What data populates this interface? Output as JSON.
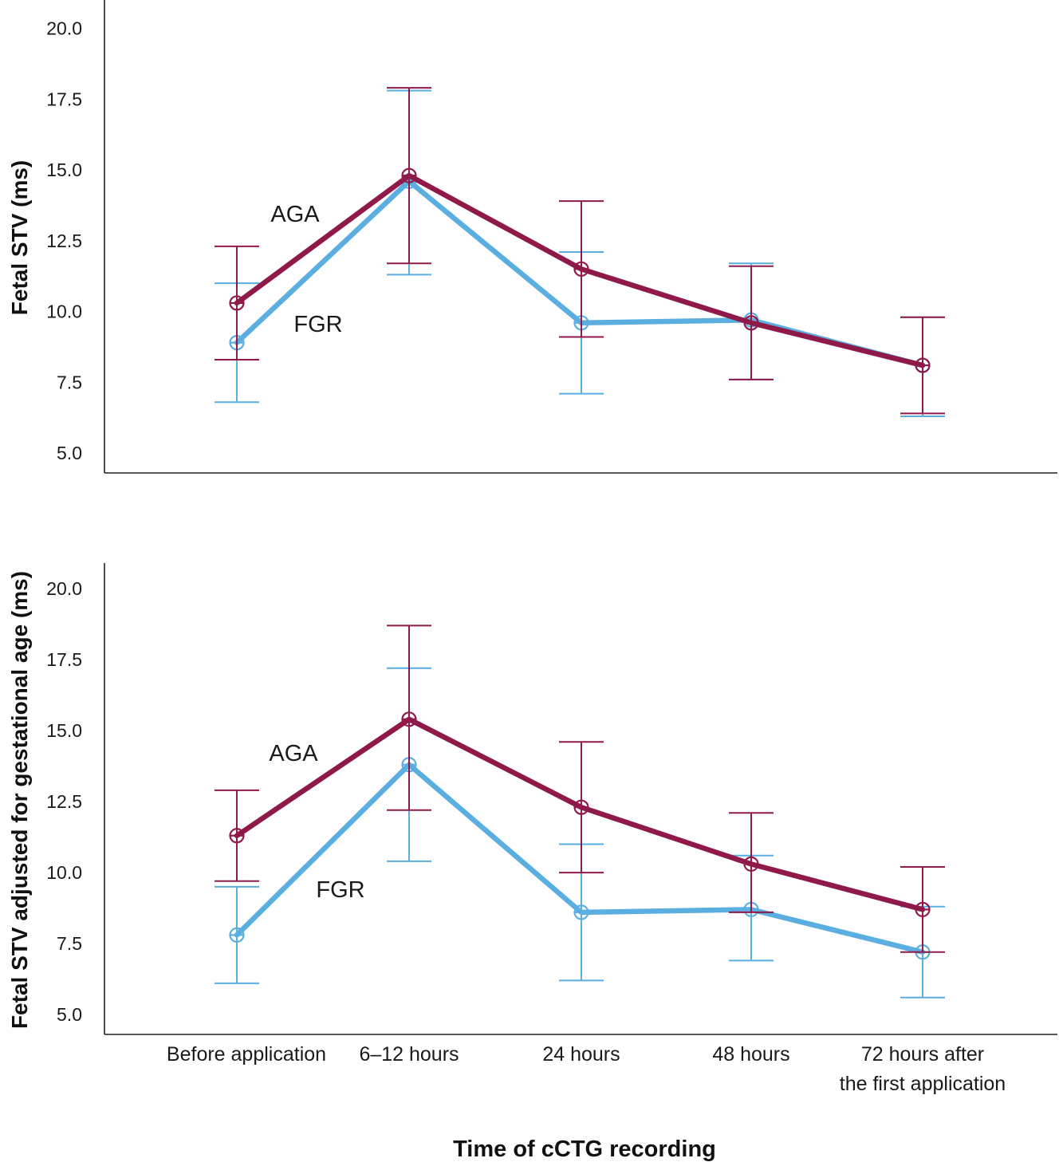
{
  "colors": {
    "AGA": "#8f1a4a",
    "FGR": "#5aaee0",
    "axis": "#222222"
  },
  "categories": [
    "Before application",
    "6–12 hours",
    "24 hours",
    "48 hours",
    "72 hours after the first application"
  ],
  "category_lines": [
    [
      "Before application"
    ],
    [
      "6–12 hours"
    ],
    [
      "24 hours"
    ],
    [
      "48 hours"
    ],
    [
      "72 hours after",
      "the first application"
    ]
  ],
  "xlabel": "Time of cCTG recording",
  "chart_data": [
    {
      "type": "line",
      "ylabel": "Fetal STV (ms)",
      "yticks": [
        5.0,
        7.5,
        10.0,
        12.5,
        15.0,
        17.5,
        20.0
      ],
      "ylim": [
        4.3,
        21.0
      ],
      "categories": [
        "Before application",
        "6–12 hours",
        "24 hours",
        "48 hours",
        "72 hours after the first application"
      ],
      "series": [
        {
          "name": "AGA",
          "values": [
            10.3,
            14.8,
            11.5,
            9.6,
            8.1
          ],
          "lower": [
            8.3,
            11.7,
            9.1,
            7.6,
            6.4
          ],
          "upper": [
            12.3,
            17.9,
            13.9,
            11.6,
            9.8
          ]
        },
        {
          "name": "FGR",
          "values": [
            8.9,
            14.6,
            9.6,
            9.7,
            8.1
          ],
          "lower": [
            6.8,
            11.3,
            7.1,
            7.6,
            6.3
          ],
          "upper": [
            11.0,
            17.8,
            12.1,
            11.7,
            9.8
          ]
        }
      ],
      "annotations": [
        {
          "text": "AGA",
          "series": "AGA"
        },
        {
          "text": "FGR",
          "series": "FGR"
        }
      ]
    },
    {
      "type": "line",
      "ylabel": "Fetal STV adjusted for gestational age (ms)",
      "yticks": [
        5.0,
        7.5,
        10.0,
        12.5,
        15.0,
        17.5,
        20.0
      ],
      "ylim": [
        4.3,
        20.9
      ],
      "categories": [
        "Before application",
        "6–12 hours",
        "24 hours",
        "48 hours",
        "72 hours after the first application"
      ],
      "series": [
        {
          "name": "AGA",
          "values": [
            11.3,
            15.4,
            12.3,
            10.3,
            8.7
          ],
          "lower": [
            9.7,
            12.2,
            10.0,
            8.6,
            7.2
          ],
          "upper": [
            12.9,
            18.7,
            14.6,
            12.1,
            10.2
          ]
        },
        {
          "name": "FGR",
          "values": [
            7.8,
            13.8,
            8.6,
            8.7,
            7.2
          ],
          "lower": [
            6.1,
            10.4,
            6.2,
            6.9,
            5.6
          ],
          "upper": [
            9.5,
            17.2,
            11.0,
            10.6,
            8.8
          ]
        }
      ],
      "annotations": [
        {
          "text": "AGA",
          "series": "AGA"
        },
        {
          "text": "FGR",
          "series": "FGR"
        }
      ]
    }
  ]
}
